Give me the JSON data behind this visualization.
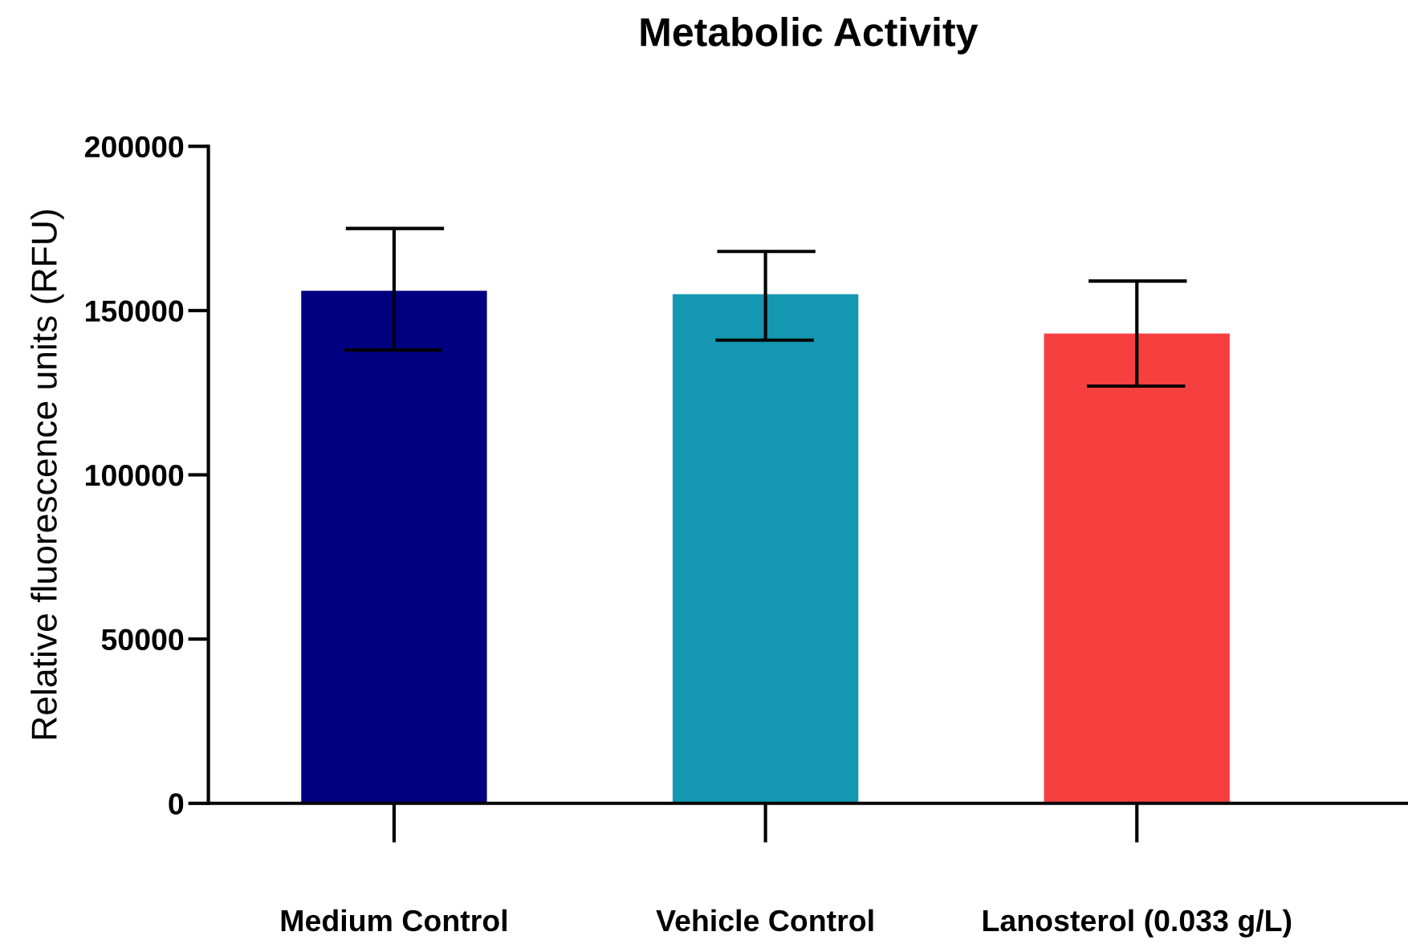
{
  "chart_data": {
    "type": "bar",
    "title": "Metabolic Activity",
    "ylabel": "Relative fluorescence units (RFU)",
    "categories": [
      "Medium Control",
      "Vehicle Control",
      "Lanosterol (0.033 g/L)"
    ],
    "values": [
      156000,
      155000,
      143000
    ],
    "errors": [
      [
        138000,
        175000
      ],
      [
        141000,
        168000
      ],
      [
        127000,
        159000
      ]
    ],
    "colors": [
      "#000080",
      "#1497b0",
      "#f64040"
    ],
    "ylim": [
      0,
      200000
    ],
    "yticks": [
      0,
      50000,
      100000,
      150000,
      200000
    ],
    "grid": false,
    "legend": false
  }
}
